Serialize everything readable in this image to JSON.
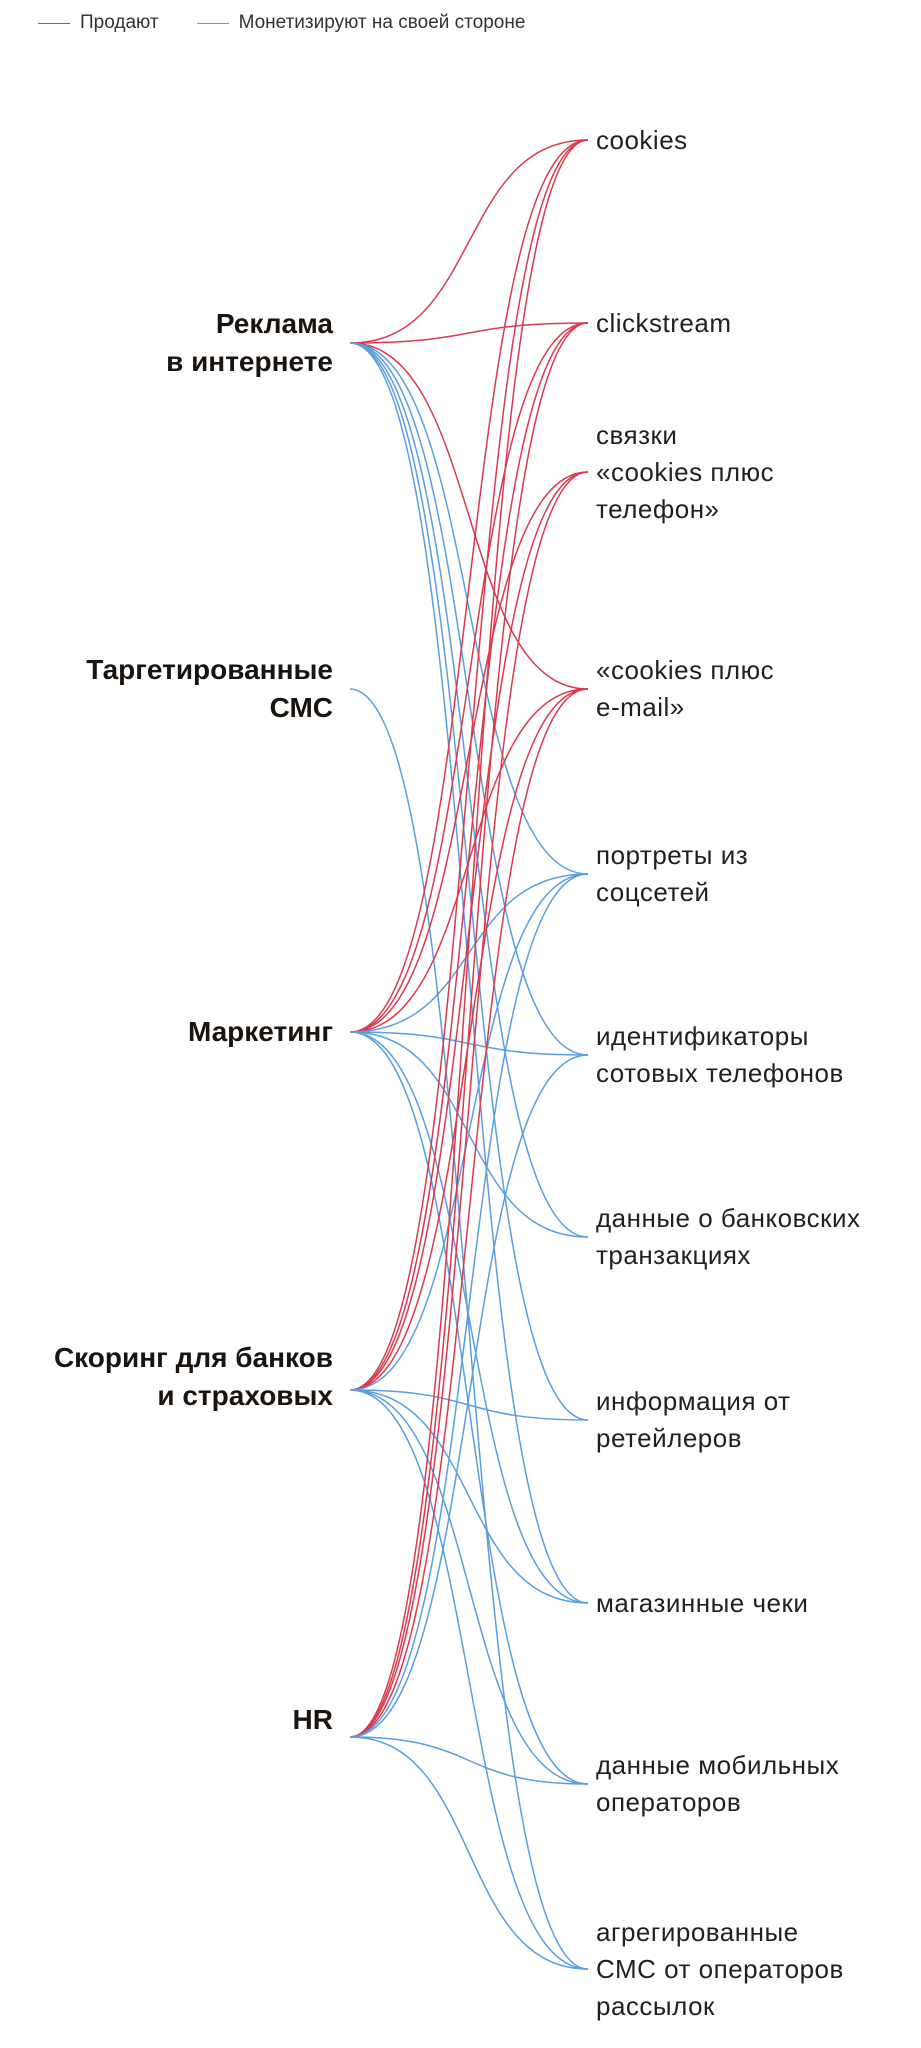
{
  "legend": [
    {
      "label": "Продают",
      "color": "#d93a4d"
    },
    {
      "label": "Монетизируют на своей стороне",
      "color": "#5a9ee0"
    }
  ],
  "sources": [
    {
      "id": "ads",
      "lines": [
        "Реклама",
        "в интернете"
      ]
    },
    {
      "id": "sms",
      "lines": [
        "Таргетированные",
        "СМС"
      ]
    },
    {
      "id": "mkt",
      "lines": [
        "Маркетинг"
      ]
    },
    {
      "id": "scr",
      "lines": [
        "Скоринг для банков",
        "и страховых"
      ]
    },
    {
      "id": "hr",
      "lines": [
        "HR"
      ]
    }
  ],
  "targets": [
    {
      "id": "cookies",
      "lines": [
        "cookies"
      ]
    },
    {
      "id": "click",
      "lines": [
        "clickstream"
      ]
    },
    {
      "id": "phone",
      "lines": [
        "связки",
        "«cookies плюс",
        "телефон»"
      ]
    },
    {
      "id": "email",
      "lines": [
        "«cookies плюс",
        "e-mail»"
      ]
    },
    {
      "id": "social",
      "lines": [
        "портреты из",
        "соцсетей"
      ]
    },
    {
      "id": "ids",
      "lines": [
        "идентификаторы",
        "сотовых телефонов"
      ]
    },
    {
      "id": "bank",
      "lines": [
        "данные о банковских",
        "транзакциях"
      ]
    },
    {
      "id": "retail",
      "lines": [
        "информация от",
        "ретейлеров"
      ]
    },
    {
      "id": "receipts",
      "lines": [
        "магазинные чеки"
      ]
    },
    {
      "id": "mobile",
      "lines": [
        "данные мобильных",
        "операторов"
      ]
    },
    {
      "id": "aggsms",
      "lines": [
        "агрегированные",
        "СМС от операторов",
        "рассылок"
      ]
    }
  ],
  "links": [
    {
      "from": "ads",
      "to": "cookies",
      "type": "sell"
    },
    {
      "from": "ads",
      "to": "click",
      "type": "sell"
    },
    {
      "from": "ads",
      "to": "email",
      "type": "sell"
    },
    {
      "from": "ads",
      "to": "social",
      "type": "own"
    },
    {
      "from": "ads",
      "to": "ids",
      "type": "own"
    },
    {
      "from": "ads",
      "to": "bank",
      "type": "own"
    },
    {
      "from": "ads",
      "to": "retail",
      "type": "own"
    },
    {
      "from": "ads",
      "to": "receipts",
      "type": "own"
    },
    {
      "from": "sms",
      "to": "aggsms",
      "type": "own"
    },
    {
      "from": "mkt",
      "to": "cookies",
      "type": "sell"
    },
    {
      "from": "mkt",
      "to": "click",
      "type": "sell"
    },
    {
      "from": "mkt",
      "to": "phone",
      "type": "sell"
    },
    {
      "from": "mkt",
      "to": "email",
      "type": "sell"
    },
    {
      "from": "mkt",
      "to": "social",
      "type": "own"
    },
    {
      "from": "mkt",
      "to": "ids",
      "type": "own"
    },
    {
      "from": "mkt",
      "to": "bank",
      "type": "own"
    },
    {
      "from": "mkt",
      "to": "receipts",
      "type": "own"
    },
    {
      "from": "mkt",
      "to": "mobile",
      "type": "own"
    },
    {
      "from": "scr",
      "to": "cookies",
      "type": "sell"
    },
    {
      "from": "scr",
      "to": "click",
      "type": "sell"
    },
    {
      "from": "scr",
      "to": "phone",
      "type": "sell"
    },
    {
      "from": "scr",
      "to": "email",
      "type": "sell"
    },
    {
      "from": "scr",
      "to": "social",
      "type": "own"
    },
    {
      "from": "scr",
      "to": "retail",
      "type": "own"
    },
    {
      "from": "scr",
      "to": "receipts",
      "type": "own"
    },
    {
      "from": "scr",
      "to": "mobile",
      "type": "own"
    },
    {
      "from": "scr",
      "to": "aggsms",
      "type": "own"
    },
    {
      "from": "hr",
      "to": "cookies",
      "type": "sell"
    },
    {
      "from": "hr",
      "to": "click",
      "type": "sell"
    },
    {
      "from": "hr",
      "to": "phone",
      "type": "sell"
    },
    {
      "from": "hr",
      "to": "email",
      "type": "sell"
    },
    {
      "from": "hr",
      "to": "social",
      "type": "own"
    },
    {
      "from": "hr",
      "to": "ids",
      "type": "own"
    },
    {
      "from": "hr",
      "to": "mobile",
      "type": "own"
    },
    {
      "from": "hr",
      "to": "aggsms",
      "type": "own"
    }
  ]
}
